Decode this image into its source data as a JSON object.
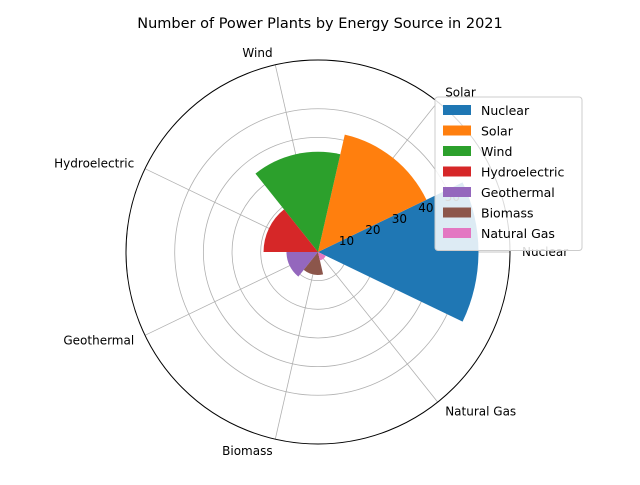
{
  "chart_data": {
    "type": "polar-bar",
    "title": "Number of Power Plants by Energy Source in 2021",
    "categories": [
      "Nuclear",
      "Solar",
      "Wind",
      "Hydroelectric",
      "Geothermal",
      "Biomass",
      "Natural Gas"
    ],
    "values": [
      56,
      42,
      35,
      19,
      11,
      8,
      3
    ],
    "colors": [
      "#1f77b4",
      "#ff7f0e",
      "#2ca02c",
      "#d62728",
      "#9467bd",
      "#8c564b",
      "#e377c2"
    ],
    "radial_ticks": [
      10,
      20,
      30,
      40,
      50
    ],
    "rmax": 67,
    "grid": true,
    "legend": "right"
  }
}
